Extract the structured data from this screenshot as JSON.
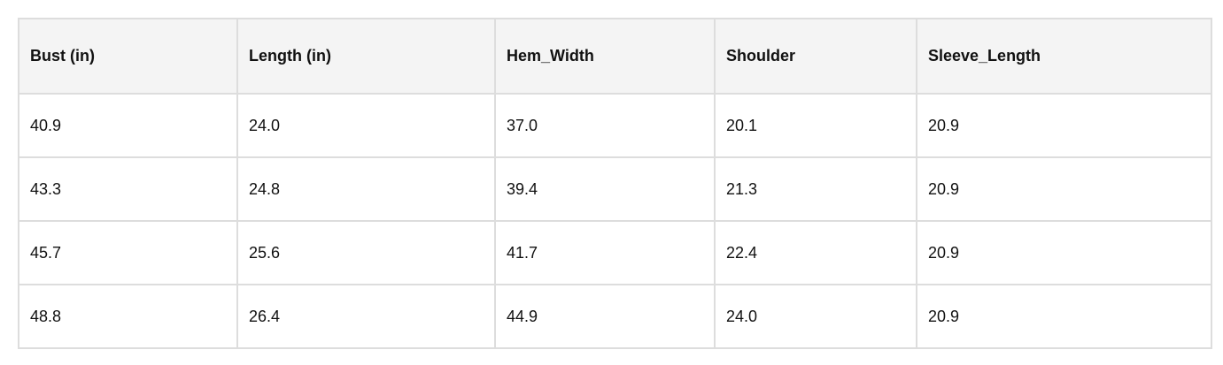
{
  "table": {
    "header": [
      "Bust (in)",
      "Length (in)",
      "Hem_Width",
      "Shoulder",
      "Sleeve_Length"
    ],
    "rows": [
      [
        "40.9",
        "24.0",
        "37.0",
        "20.1",
        "20.9"
      ],
      [
        "43.3",
        "24.8",
        "39.4",
        "21.3",
        "20.9"
      ],
      [
        "45.7",
        "25.6",
        "41.7",
        "22.4",
        "20.9"
      ],
      [
        "48.8",
        "26.4",
        "44.9",
        "24.0",
        "20.9"
      ]
    ]
  }
}
